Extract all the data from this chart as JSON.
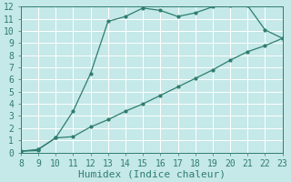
{
  "title": "",
  "xlabel": "Humidex (Indice chaleur)",
  "ylabel": "",
  "background_color": "#c5e8e8",
  "grid_color": "#ffffff",
  "line_color": "#2e7d6e",
  "marker_color": "#2e7d6e",
  "xlim": [
    8,
    23
  ],
  "ylim": [
    0,
    12
  ],
  "xticks": [
    8,
    9,
    10,
    11,
    12,
    13,
    14,
    15,
    16,
    17,
    18,
    19,
    20,
    21,
    22,
    23
  ],
  "yticks": [
    0,
    1,
    2,
    3,
    4,
    5,
    6,
    7,
    8,
    9,
    10,
    11,
    12
  ],
  "x_upper": [
    8,
    9,
    9,
    10,
    11,
    12,
    13,
    14,
    15,
    16,
    17,
    18,
    19,
    20,
    21,
    22,
    23
  ],
  "y_upper": [
    0.1,
    0.15,
    0.25,
    1.2,
    3.4,
    6.5,
    10.8,
    11.2,
    11.9,
    11.7,
    11.2,
    11.5,
    12.0,
    12.1,
    12.1,
    10.1,
    9.4
  ],
  "x_lower": [
    8,
    9,
    10,
    11,
    12,
    13,
    14,
    15,
    16,
    17,
    18,
    19,
    20,
    21,
    22,
    23
  ],
  "y_lower": [
    0.1,
    0.25,
    1.2,
    1.3,
    2.1,
    2.7,
    3.4,
    4.0,
    4.7,
    5.4,
    6.1,
    6.8,
    7.6,
    8.3,
    8.8,
    9.4
  ],
  "font": "monospace",
  "fontsize_xlabel": 8,
  "fontsize_ticks": 7
}
